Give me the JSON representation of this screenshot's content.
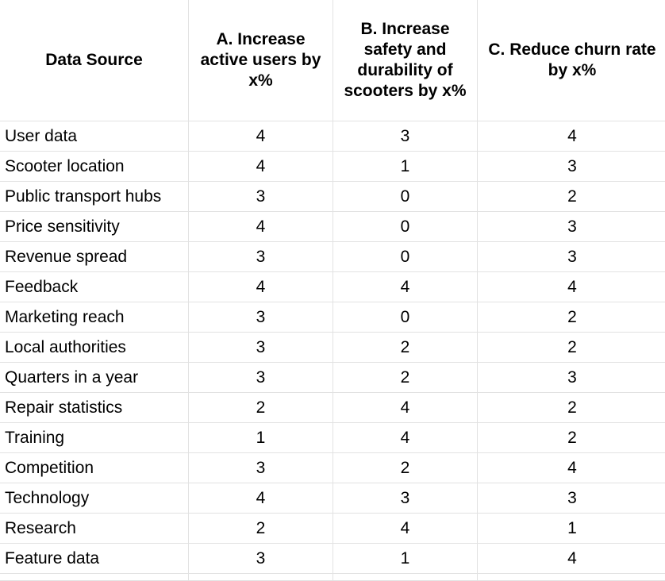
{
  "table": {
    "headers": [
      "Data Source",
      "A. Increase active users by x%",
      "B. Increase safety and durability of scooters by x%",
      "C. Reduce churn rate by x%"
    ],
    "rows": [
      {
        "source": "User data",
        "a": "4",
        "b": "3",
        "c": "4"
      },
      {
        "source": "Scooter location",
        "a": "4",
        "b": "1",
        "c": "3"
      },
      {
        "source": "Public transport hubs",
        "a": "3",
        "b": "0",
        "c": "2"
      },
      {
        "source": "Price sensitivity",
        "a": "4",
        "b": "0",
        "c": "3"
      },
      {
        "source": "Revenue spread",
        "a": "3",
        "b": "0",
        "c": "3"
      },
      {
        "source": "Feedback",
        "a": "4",
        "b": "4",
        "c": "4"
      },
      {
        "source": "Marketing reach",
        "a": "3",
        "b": "0",
        "c": "2"
      },
      {
        "source": "Local authorities",
        "a": "3",
        "b": "2",
        "c": "2"
      },
      {
        "source": "Quarters in a year",
        "a": "3",
        "b": "2",
        "c": "3"
      },
      {
        "source": "Repair statistics",
        "a": "2",
        "b": "4",
        "c": "2"
      },
      {
        "source": "Training",
        "a": "1",
        "b": "4",
        "c": "2"
      },
      {
        "source": "Competition",
        "a": "3",
        "b": "2",
        "c": "4"
      },
      {
        "source": "Technology",
        "a": "4",
        "b": "3",
        "c": "3"
      },
      {
        "source": "Research",
        "a": "2",
        "b": "4",
        "c": "1"
      },
      {
        "source": "Feature data",
        "a": "3",
        "b": "1",
        "c": "4"
      }
    ]
  }
}
